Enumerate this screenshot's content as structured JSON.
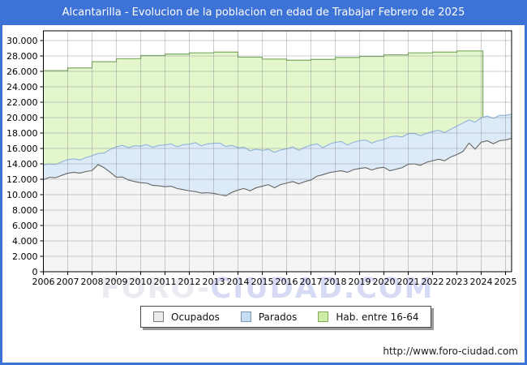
{
  "window": {
    "title": "Alcantarilla - Evolucion de la poblacion en edad de Trabajar Febrero de 2025"
  },
  "theme": {
    "frame_border_color": "#3d72d6",
    "title_bar_color": "#3d72d6",
    "title_text_color": "#ffffff",
    "grid_color": "rgba(125,125,140,0.38)",
    "plot_border_color": "#000000",
    "axis_text_color": "#000000"
  },
  "watermark": {
    "part1": "FORO-",
    "part2": "CIUDAD.COM"
  },
  "footer": {
    "url": "http://www.foro-ciudad.com"
  },
  "legend": {
    "items": [
      {
        "label": "Ocupados",
        "fill": "#ececec",
        "border": "#7a7a7a"
      },
      {
        "label": "Parados",
        "fill": "#c6dcf2",
        "border": "#7b97b5"
      },
      {
        "label": "Hab. entre 16-64",
        "fill": "#cfeca4",
        "border": "#85a95f"
      }
    ]
  },
  "chart_data": {
    "type": "area",
    "title": "Alcantarilla - Evolucion de la poblacion en edad de Trabajar Febrero de 2025",
    "xlabel": "",
    "ylabel": "",
    "x_ticks": [
      2006,
      2007,
      2008,
      2009,
      2010,
      2011,
      2012,
      2013,
      2014,
      2015,
      2016,
      2017,
      2018,
      2019,
      2020,
      2021,
      2022,
      2023,
      2024,
      2025
    ],
    "xlim": [
      2006,
      2025.25
    ],
    "ylim": [
      0,
      30000
    ],
    "y_tick_step": 2000,
    "grid": true,
    "legend_position": "bottom",
    "series": [
      {
        "name": "Hab. entre 16-64",
        "mode": "yearly-steps",
        "x_start": 2006,
        "x_step": 1,
        "x_end": 2024.07,
        "fill": "#e4f6cb",
        "stroke": "#7cab61",
        "values": [
          26100,
          26450,
          27250,
          27650,
          28050,
          28250,
          28400,
          28500,
          27850,
          27600,
          27450,
          27550,
          27800,
          27950,
          28150,
          28400,
          28500,
          28650,
          28650
        ]
      },
      {
        "name": "Parados",
        "mode": "stacked-on-ocupados",
        "x_start": 2006,
        "x_step": 0.25,
        "fill": "#ddebf8",
        "stroke": "#8fb2dc",
        "values": [
          1900,
          1750,
          1700,
          1750,
          1770,
          1750,
          1700,
          1800,
          1920,
          1450,
          1900,
          3000,
          3940,
          4100,
          4200,
          4650,
          4750,
          5000,
          4950,
          5250,
          5420,
          5500,
          5400,
          5850,
          6050,
          6350,
          6150,
          6350,
          6490,
          6700,
          6400,
          6100,
          5500,
          5350,
          5200,
          5000,
          4650,
          4600,
          4600,
          4500,
          4450,
          4500,
          4350,
          4450,
          4550,
          4200,
          3500,
          3700,
          3800,
          3800,
          3550,
          3550,
          3600,
          3600,
          3500,
          3550,
          3600,
          4400,
          4300,
          4000,
          3950,
          3950,
          3850,
          3750,
          3800,
          3750,
          3650,
          3600,
          3700,
          3700,
          3000,
          3500,
          3200,
          3200,
          3300,
          3300,
          3200,
          3150
        ]
      },
      {
        "name": "Ocupados",
        "mode": "area",
        "x_start": 2006,
        "x_step": 0.25,
        "fill": "#f4f4f5",
        "stroke": "#636363",
        "values": [
          11950,
          12250,
          12200,
          12500,
          12780,
          12900,
          12800,
          13000,
          13130,
          13900,
          13500,
          12900,
          12260,
          12300,
          11900,
          11700,
          11550,
          11500,
          11200,
          11150,
          11030,
          11100,
          10800,
          10650,
          10500,
          10400,
          10200,
          10250,
          10160,
          10000,
          9850,
          10300,
          10600,
          10800,
          10500,
          10900,
          11100,
          11300,
          10900,
          11300,
          11500,
          11700,
          11400,
          11700,
          11900,
          12400,
          12600,
          12850,
          13000,
          13100,
          12900,
          13250,
          13400,
          13500,
          13200,
          13450,
          13550,
          13100,
          13300,
          13500,
          13950,
          14000,
          13800,
          14200,
          14400,
          14600,
          14400,
          14900,
          15200,
          15600,
          16700,
          15900,
          16800,
          17000,
          16600,
          17000,
          17100,
          17300
        ]
      }
    ]
  }
}
